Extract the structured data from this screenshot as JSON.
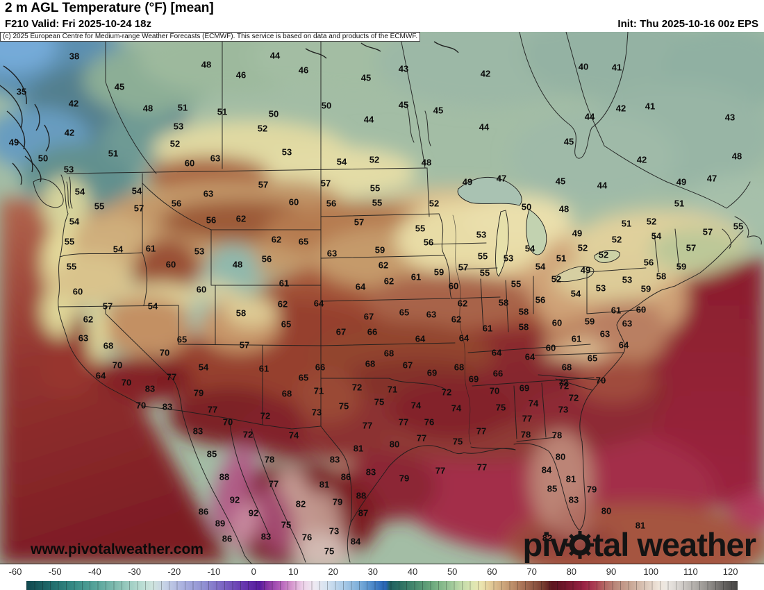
{
  "header": {
    "title": "2 m AGL Temperature (°F) [mean]",
    "forecast_line": "F210 Valid: Fri 2025-10-24 18z",
    "init_line": "Init: Thu 2025-10-16 00z EPS",
    "copyright_notice": "(c) 2025 European Centre for Medium-range Weather Forecasts (ECMWF). This service is based on data and products of the ECMWF."
  },
  "branding": {
    "url_watermark": "www.pivotalweather.com",
    "logo_text_left": "piv",
    "logo_text_right": "tal weather",
    "logo_icon": "gear-icon",
    "logo_color": "#141414"
  },
  "colorbar": {
    "unit": "°F",
    "min": -60,
    "max": 120,
    "ticks": [
      -60,
      -50,
      -40,
      -30,
      -20,
      -10,
      0,
      10,
      20,
      30,
      40,
      50,
      60,
      70,
      80,
      90,
      100,
      110,
      120
    ],
    "stops": [
      [
        -60,
        "#11494f"
      ],
      [
        -54,
        "#1f6a6a"
      ],
      [
        -48,
        "#368c86"
      ],
      [
        -42,
        "#5aa69c"
      ],
      [
        -36,
        "#8cc2b6"
      ],
      [
        -31,
        "#b8dcd2"
      ],
      [
        -28,
        "#cfe4de"
      ],
      [
        -25,
        "#c6d2e6"
      ],
      [
        -20,
        "#a8aede"
      ],
      [
        -15,
        "#9090d2"
      ],
      [
        -10,
        "#7a62c2"
      ],
      [
        -5,
        "#6636ae"
      ],
      [
        -1,
        "#571c9e"
      ],
      [
        1,
        "#8836a4"
      ],
      [
        4,
        "#b05cb8"
      ],
      [
        7,
        "#d494cc"
      ],
      [
        10,
        "#eed2ea"
      ],
      [
        13,
        "#eeeaf2"
      ],
      [
        16,
        "#d4e2f0"
      ],
      [
        20,
        "#accce8"
      ],
      [
        24,
        "#7fb0da"
      ],
      [
        27,
        "#5590cc"
      ],
      [
        30,
        "#2f6cba"
      ],
      [
        31,
        "#2a66b4"
      ],
      [
        32,
        "#1f6060"
      ],
      [
        35,
        "#2f7264"
      ],
      [
        38,
        "#44886e"
      ],
      [
        41,
        "#5c9c76"
      ],
      [
        44,
        "#7ab284"
      ],
      [
        47,
        "#98c496"
      ],
      [
        50,
        "#c0daa9"
      ],
      [
        53,
        "#dde6b2"
      ],
      [
        55,
        "#ebe5b0"
      ],
      [
        57,
        "#e5d09c"
      ],
      [
        60,
        "#d2ae82"
      ],
      [
        63,
        "#bd8f6a"
      ],
      [
        66,
        "#a56e53"
      ],
      [
        69,
        "#8a5240"
      ],
      [
        71,
        "#753a2e"
      ],
      [
        73,
        "#5e1620"
      ],
      [
        75,
        "#671527"
      ],
      [
        78,
        "#801a34"
      ],
      [
        81,
        "#982244"
      ],
      [
        84,
        "#ac4054"
      ],
      [
        86,
        "#b26260"
      ],
      [
        89,
        "#ba887a"
      ],
      [
        93,
        "#c9a896"
      ],
      [
        97,
        "#ddcabc"
      ],
      [
        100,
        "#efe5da"
      ],
      [
        102,
        "#ece8e2"
      ],
      [
        105,
        "#d8d4d0"
      ],
      [
        109,
        "#b4b0ac"
      ],
      [
        113,
        "#8f8c89"
      ],
      [
        117,
        "#605e5c"
      ],
      [
        120,
        "#454443"
      ]
    ]
  },
  "map_labels": [
    [
      38,
      107,
      81
    ],
    [
      45,
      172,
      125
    ],
    [
      48,
      297,
      93
    ],
    [
      46,
      347,
      108
    ],
    [
      35,
      31,
      132
    ],
    [
      42,
      106,
      149
    ],
    [
      48,
      213,
      156
    ],
    [
      51,
      263,
      155
    ],
    [
      51,
      320,
      161
    ],
    [
      53,
      257,
      182
    ],
    [
      42,
      100,
      191
    ],
    [
      52,
      252,
      207
    ],
    [
      49,
      20,
      205
    ],
    [
      51,
      163,
      221
    ],
    [
      50,
      62,
      228
    ],
    [
      60,
      273,
      235
    ],
    [
      63,
      310,
      228
    ],
    [
      53,
      99,
      244
    ],
    [
      54,
      115,
      276
    ],
    [
      54,
      197,
      275
    ],
    [
      56,
      254,
      293
    ],
    [
      63,
      300,
      279
    ],
    [
      55,
      143,
      297
    ],
    [
      57,
      200,
      300
    ],
    [
      44,
      396,
      80
    ],
    [
      46,
      437,
      101
    ],
    [
      45,
      527,
      112
    ],
    [
      43,
      581,
      99
    ],
    [
      42,
      699,
      106
    ],
    [
      50,
      470,
      152
    ],
    [
      50,
      394,
      164
    ],
    [
      45,
      581,
      151
    ],
    [
      45,
      631,
      159
    ],
    [
      44,
      531,
      172
    ],
    [
      44,
      697,
      183
    ],
    [
      52,
      378,
      185
    ],
    [
      53,
      413,
      219
    ],
    [
      54,
      492,
      233
    ],
    [
      52,
      539,
      230
    ],
    [
      48,
      614,
      234
    ],
    [
      49,
      673,
      262
    ],
    [
      47,
      722,
      257
    ],
    [
      57,
      379,
      266
    ],
    [
      57,
      469,
      264
    ],
    [
      55,
      540,
      271
    ],
    [
      60,
      423,
      291
    ],
    [
      56,
      477,
      293
    ],
    [
      55,
      543,
      292
    ],
    [
      52,
      625,
      293
    ],
    [
      40,
      840,
      96
    ],
    [
      41,
      888,
      97
    ],
    [
      42,
      894,
      156
    ],
    [
      41,
      936,
      153
    ],
    [
      43,
      1051,
      169
    ],
    [
      44,
      849,
      168
    ],
    [
      45,
      819,
      204
    ],
    [
      42,
      924,
      230
    ],
    [
      48,
      1061,
      225
    ],
    [
      45,
      807,
      261
    ],
    [
      44,
      867,
      267
    ],
    [
      49,
      981,
      262
    ],
    [
      47,
      1025,
      257
    ],
    [
      51,
      978,
      293
    ],
    [
      50,
      758,
      298
    ],
    [
      48,
      812,
      301
    ],
    [
      54,
      107,
      319
    ],
    [
      56,
      304,
      317
    ],
    [
      62,
      347,
      315
    ],
    [
      55,
      100,
      348
    ],
    [
      54,
      170,
      359
    ],
    [
      61,
      217,
      358
    ],
    [
      53,
      287,
      362
    ],
    [
      60,
      246,
      381
    ],
    [
      48,
      342,
      381
    ],
    [
      55,
      103,
      384
    ],
    [
      60,
      112,
      420
    ],
    [
      60,
      290,
      417
    ],
    [
      57,
      155,
      441
    ],
    [
      54,
      220,
      441
    ],
    [
      58,
      347,
      451
    ],
    [
      62,
      127,
      460
    ],
    [
      63,
      120,
      487
    ],
    [
      65,
      262,
      489
    ],
    [
      57,
      352,
      497
    ],
    [
      68,
      156,
      498
    ],
    [
      70,
      237,
      508
    ],
    [
      70,
      169,
      526
    ],
    [
      54,
      293,
      529
    ],
    [
      64,
      145,
      541
    ],
    [
      77,
      247,
      543
    ],
    [
      70,
      182,
      551
    ],
    [
      57,
      517,
      320
    ],
    [
      55,
      605,
      329
    ],
    [
      62,
      398,
      345
    ],
    [
      65,
      437,
      348
    ],
    [
      56,
      617,
      349
    ],
    [
      53,
      693,
      338
    ],
    [
      63,
      478,
      365
    ],
    [
      59,
      547,
      360
    ],
    [
      55,
      695,
      369
    ],
    [
      53,
      732,
      372
    ],
    [
      56,
      384,
      373
    ],
    [
      62,
      552,
      382
    ],
    [
      57,
      667,
      385
    ],
    [
      59,
      632,
      392
    ],
    [
      55,
      698,
      393
    ],
    [
      61,
      409,
      408
    ],
    [
      61,
      599,
      399
    ],
    [
      62,
      560,
      405
    ],
    [
      60,
      653,
      412
    ],
    [
      64,
      519,
      413
    ],
    [
      62,
      407,
      438
    ],
    [
      64,
      459,
      437
    ],
    [
      62,
      666,
      437
    ],
    [
      58,
      725,
      436
    ],
    [
      67,
      531,
      456
    ],
    [
      65,
      582,
      450
    ],
    [
      63,
      621,
      453
    ],
    [
      62,
      657,
      460
    ],
    [
      65,
      412,
      467
    ],
    [
      61,
      702,
      473
    ],
    [
      67,
      491,
      478
    ],
    [
      66,
      536,
      478
    ],
    [
      64,
      605,
      488
    ],
    [
      64,
      668,
      487
    ],
    [
      68,
      560,
      509
    ],
    [
      64,
      715,
      508
    ],
    [
      66,
      461,
      529
    ],
    [
      68,
      533,
      524
    ],
    [
      67,
      587,
      526
    ],
    [
      68,
      661,
      529
    ],
    [
      69,
      622,
      537
    ],
    [
      66,
      717,
      538
    ],
    [
      61,
      380,
      531
    ],
    [
      65,
      437,
      544
    ],
    [
      69,
      682,
      546
    ],
    [
      51,
      902,
      322
    ],
    [
      52,
      938,
      319
    ],
    [
      49,
      831,
      336
    ],
    [
      54,
      945,
      340
    ],
    [
      57,
      1019,
      334
    ],
    [
      55,
      1063,
      326
    ],
    [
      52,
      888,
      345
    ],
    [
      54,
      763,
      358
    ],
    [
      52,
      839,
      357
    ],
    [
      57,
      995,
      357
    ],
    [
      51,
      808,
      372
    ],
    [
      52,
      869,
      367
    ],
    [
      54,
      778,
      384
    ],
    [
      56,
      934,
      378
    ],
    [
      59,
      981,
      384
    ],
    [
      49,
      843,
      389
    ],
    [
      58,
      952,
      398
    ],
    [
      52,
      801,
      402
    ],
    [
      53,
      903,
      403
    ],
    [
      55,
      743,
      409
    ],
    [
      59,
      930,
      416
    ],
    [
      53,
      865,
      415
    ],
    [
      54,
      829,
      423
    ],
    [
      56,
      778,
      432
    ],
    [
      58,
      754,
      449
    ],
    [
      61,
      887,
      447
    ],
    [
      60,
      923,
      446
    ],
    [
      60,
      802,
      465
    ],
    [
      59,
      849,
      463
    ],
    [
      58,
      754,
      471
    ],
    [
      63,
      903,
      466
    ],
    [
      63,
      871,
      481
    ],
    [
      61,
      830,
      488
    ],
    [
      60,
      793,
      501
    ],
    [
      64,
      898,
      497
    ],
    [
      64,
      763,
      514
    ],
    [
      65,
      853,
      516
    ],
    [
      68,
      816,
      529
    ],
    [
      72,
      811,
      551
    ],
    [
      70,
      865,
      548
    ],
    [
      83,
      216,
      560
    ],
    [
      79,
      286,
      566
    ],
    [
      70,
      203,
      584
    ],
    [
      83,
      241,
      586
    ],
    [
      77,
      306,
      590
    ],
    [
      70,
      328,
      608
    ],
    [
      72,
      357,
      626
    ],
    [
      83,
      285,
      621
    ],
    [
      85,
      305,
      654
    ],
    [
      88,
      323,
      687
    ],
    [
      92,
      338,
      720
    ],
    [
      92,
      365,
      739
    ],
    [
      86,
      293,
      737
    ],
    [
      89,
      317,
      754
    ],
    [
      86,
      327,
      776
    ],
    [
      68,
      413,
      567
    ],
    [
      71,
      459,
      563
    ],
    [
      72,
      514,
      558
    ],
    [
      71,
      565,
      561
    ],
    [
      72,
      643,
      565
    ],
    [
      70,
      712,
      563
    ],
    [
      75,
      495,
      585
    ],
    [
      75,
      546,
      579
    ],
    [
      74,
      599,
      584
    ],
    [
      74,
      657,
      588
    ],
    [
      75,
      721,
      587
    ],
    [
      72,
      382,
      599
    ],
    [
      73,
      456,
      594
    ],
    [
      77,
      529,
      613
    ],
    [
      77,
      581,
      608
    ],
    [
      76,
      618,
      608
    ],
    [
      77,
      693,
      621
    ],
    [
      74,
      423,
      627
    ],
    [
      77,
      607,
      631
    ],
    [
      75,
      659,
      636
    ],
    [
      80,
      568,
      640
    ],
    [
      81,
      516,
      646
    ],
    [
      78,
      388,
      662
    ],
    [
      83,
      482,
      662
    ],
    [
      83,
      534,
      680
    ],
    [
      77,
      634,
      678
    ],
    [
      77,
      694,
      673
    ],
    [
      86,
      498,
      687
    ],
    [
      79,
      582,
      689
    ],
    [
      77,
      394,
      697
    ],
    [
      81,
      467,
      698
    ],
    [
      88,
      520,
      714
    ],
    [
      82,
      433,
      726
    ],
    [
      79,
      486,
      723
    ],
    [
      87,
      523,
      739
    ],
    [
      75,
      412,
      756
    ],
    [
      73,
      481,
      765
    ],
    [
      83,
      383,
      773
    ],
    [
      76,
      442,
      774
    ],
    [
      84,
      512,
      780
    ],
    [
      75,
      474,
      794
    ],
    [
      69,
      755,
      559
    ],
    [
      72,
      812,
      556
    ],
    [
      72,
      826,
      573
    ],
    [
      74,
      768,
      581
    ],
    [
      73,
      811,
      590
    ],
    [
      77,
      759,
      603
    ],
    [
      78,
      757,
      626
    ],
    [
      78,
      802,
      627
    ],
    [
      80,
      807,
      658
    ],
    [
      84,
      787,
      677
    ],
    [
      81,
      822,
      690
    ],
    [
      85,
      795,
      704
    ],
    [
      79,
      852,
      705
    ],
    [
      83,
      826,
      720
    ],
    [
      80,
      873,
      736
    ],
    [
      81,
      922,
      757
    ],
    [
      82,
      788,
      775
    ]
  ]
}
